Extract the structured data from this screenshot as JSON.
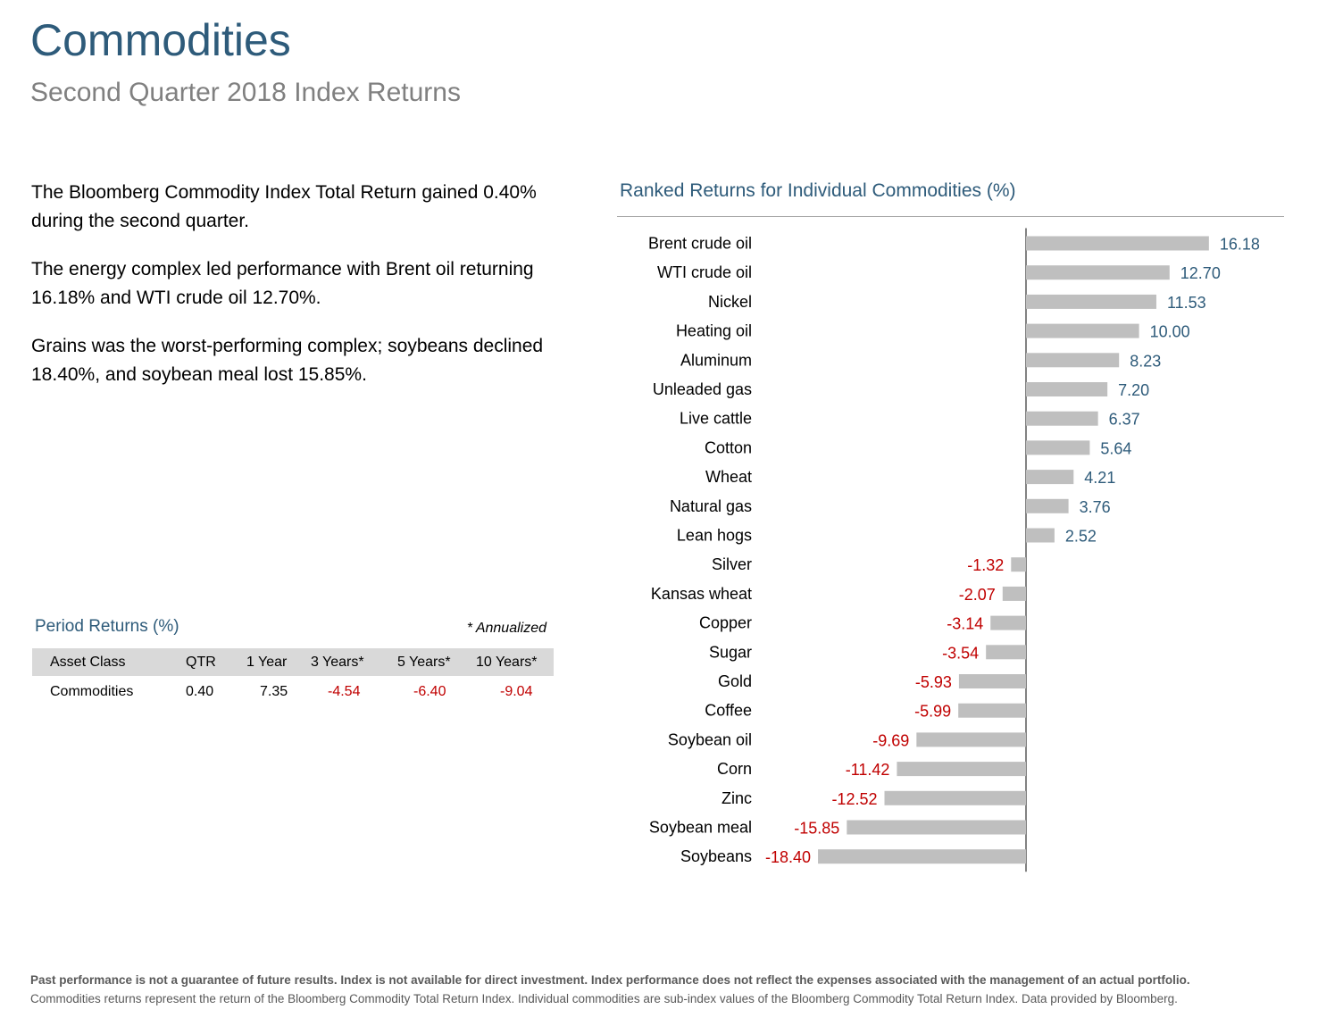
{
  "header": {
    "title": "Commodities",
    "subtitle": "Second Quarter 2018 Index Returns"
  },
  "summary": [
    "The Bloomberg Commodity Index Total Return gained 0.40% during the second quarter.",
    "The energy complex led performance with Brent oil returning 16.18% and WTI crude oil 12.70%.",
    "Grains was the worst-performing complex; soybeans declined 18.40%, and soybean meal lost 15.85%."
  ],
  "period_returns": {
    "title": "Period Returns (%)",
    "note": "* Annualized",
    "columns": [
      "Asset Class",
      "QTR",
      "1 Year",
      "3 Years*",
      "5 Years*",
      "10 Years*"
    ],
    "rows": [
      {
        "cells": [
          "Commodities",
          "0.40",
          "7.35",
          "-4.54",
          "-6.40",
          "-9.04"
        ]
      }
    ],
    "negative_color": "#c00000"
  },
  "chart_data": {
    "type": "bar",
    "orientation": "horizontal",
    "title": "Ranked Returns for Individual Commodities (%)",
    "categories": [
      "Brent crude oil",
      "WTI crude oil",
      "Nickel",
      "Heating oil",
      "Aluminum",
      "Unleaded gas",
      "Live cattle",
      "Cotton",
      "Wheat",
      "Natural gas",
      "Lean hogs",
      "Silver",
      "Kansas wheat",
      "Copper",
      "Sugar",
      "Gold",
      "Coffee",
      "Soybean oil",
      "Corn",
      "Zinc",
      "Soybean meal",
      "Soybeans"
    ],
    "values": [
      16.18,
      12.7,
      11.53,
      10.0,
      8.23,
      7.2,
      6.37,
      5.64,
      4.21,
      3.76,
      2.52,
      -1.32,
      -2.07,
      -3.14,
      -3.54,
      -5.93,
      -5.99,
      -9.69,
      -11.42,
      -12.52,
      -15.85,
      -18.4
    ],
    "labels": [
      "16.18",
      "12.70",
      "11.53",
      "10.00",
      "8.23",
      "7.20",
      "6.37",
      "5.64",
      "4.21",
      "3.76",
      "2.52",
      "-1.32",
      "-2.07",
      "-3.14",
      "-3.54",
      "-5.93",
      "-5.99",
      "-9.69",
      "-11.42",
      "-12.52",
      "-15.85",
      "-18.40"
    ],
    "bar_color": "#bfbfbf",
    "positive_label_color": "#2e5b7a",
    "negative_label_color": "#c00000"
  },
  "footer": {
    "disclaimer": "Past performance is not a guarantee of future results. Index is not available for direct investment. Index performance does not reflect the expenses associated with the management of an actual portfolio.",
    "note": "Commodities returns represent the return of the Bloomberg Commodity Total Return Index. Individual commodities are sub-index values of the Bloomberg Commodity Total Return Index. Data provided by Bloomberg."
  }
}
